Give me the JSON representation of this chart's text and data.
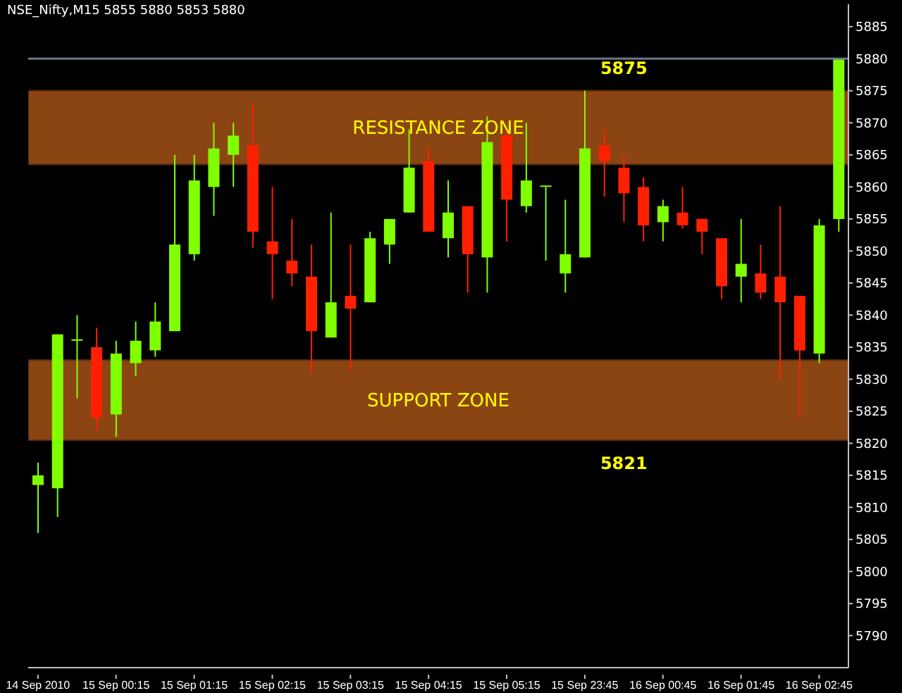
{
  "chart_data": {
    "type": "candlestick",
    "title": "NSE_Nifty,M15  5855 5880 5853 5880",
    "categories": [
      "14 Sep 2010",
      null,
      null,
      null,
      "15 Sep 00:15",
      null,
      null,
      null,
      "15 Sep 01:15",
      null,
      null,
      null,
      "15 Sep 02:15",
      null,
      null,
      null,
      "15 Sep 03:15",
      null,
      null,
      null,
      "15 Sep 04:15",
      null,
      null,
      null,
      "15 Sep 05:15",
      null,
      null,
      null,
      "15 Sep 23:45",
      null,
      null,
      null,
      "16 Sep 00:45",
      null,
      null,
      null,
      "16 Sep 01:45",
      null,
      null,
      null,
      "16 Sep 02:45",
      null
    ],
    "ohlc": [
      [
        5813.5,
        5817,
        5806,
        5815
      ],
      [
        5813,
        5837,
        5808.5,
        5837
      ],
      [
        5836,
        5840,
        5827,
        5836
      ],
      [
        5835,
        5838,
        5822,
        5824
      ],
      [
        5824.5,
        5836,
        5821,
        5834
      ],
      [
        5832.5,
        5839,
        5830.5,
        5836
      ],
      [
        5834.5,
        5842,
        5833.5,
        5839
      ],
      [
        5837.5,
        5865,
        5837.5,
        5851
      ],
      [
        5849.5,
        5865,
        5848.5,
        5861
      ],
      [
        5860,
        5870,
        5855.5,
        5866
      ],
      [
        5865,
        5870,
        5860,
        5868
      ],
      [
        5866.5,
        5873,
        5850.5,
        5853
      ],
      [
        5851.5,
        5860,
        5842.5,
        5849.5
      ],
      [
        5848.5,
        5855,
        5844.5,
        5846.5
      ],
      [
        5846,
        5851,
        5831,
        5837.5
      ],
      [
        5836.5,
        5856,
        5836.5,
        5842
      ],
      [
        5843,
        5851,
        5831.5,
        5841
      ],
      [
        5842,
        5853,
        5842,
        5852
      ],
      [
        5851,
        5855,
        5848,
        5855
      ],
      [
        5856,
        5869,
        5856,
        5863
      ],
      [
        5864,
        5866,
        5853,
        5853
      ],
      [
        5852,
        5861,
        5849,
        5856
      ],
      [
        5857,
        5857,
        5843.5,
        5849.5
      ],
      [
        5849,
        5871,
        5843.5,
        5867
      ],
      [
        5868,
        5869,
        5851.5,
        5858
      ],
      [
        5857,
        5870,
        5856,
        5861
      ],
      [
        5860,
        5860,
        5848.5,
        5860
      ],
      [
        5846.5,
        5858,
        5843.5,
        5849.5
      ],
      [
        5849,
        5875,
        5849,
        5866
      ],
      [
        5866.5,
        5869,
        5858.5,
        5864
      ],
      [
        5863,
        5865,
        5854.5,
        5859
      ],
      [
        5860,
        5861.5,
        5851.5,
        5854
      ],
      [
        5854.5,
        5858,
        5851.5,
        5857
      ],
      [
        5856,
        5860,
        5853.5,
        5854
      ],
      [
        5855,
        5855,
        5849.5,
        5853
      ],
      [
        5852,
        5852,
        5842.5,
        5844.5
      ],
      [
        5846,
        5855,
        5842,
        5848
      ],
      [
        5846.5,
        5851,
        5842.5,
        5843.5
      ],
      [
        5846,
        5857,
        5830,
        5842
      ],
      [
        5843,
        5843,
        5824,
        5834.5
      ],
      [
        5834,
        5855,
        5832.5,
        5854
      ],
      [
        5855,
        5880,
        5853,
        5880
      ]
    ],
    "colors": [
      "#80ff00",
      "#80ff00",
      "#80ff00",
      "#ff2000",
      "#80ff00",
      "#80ff00",
      "#80ff00",
      "#80ff00",
      "#80ff00",
      "#80ff00",
      "#80ff00",
      "#ff2000",
      "#ff2000",
      "#ff2000",
      "#ff2000",
      "#80ff00",
      "#ff2000",
      "#80ff00",
      "#80ff00",
      "#80ff00",
      "#ff2000",
      "#80ff00",
      "#ff2000",
      "#80ff00",
      "#ff2000",
      "#80ff00",
      "#80ff00",
      "#80ff00",
      "#80ff00",
      "#ff2000",
      "#ff2000",
      "#ff2000",
      "#80ff00",
      "#ff2000",
      "#ff2000",
      "#ff2000",
      "#80ff00",
      "#ff2000",
      "#ff2000",
      "#ff2000",
      "#80ff00",
      "#80ff00"
    ],
    "ylim": [
      5785,
      5888.5
    ],
    "yticks": [
      5790,
      5795,
      5800,
      5805,
      5810,
      5815,
      5820,
      5825,
      5830,
      5835,
      5840,
      5845,
      5850,
      5855,
      5860,
      5865,
      5870,
      5875,
      5885
    ],
    "bands": [
      {
        "axis": "y",
        "from": 5863.5,
        "to": 5875,
        "label": "RESISTANCE ZONE",
        "color": "#8b4513"
      },
      {
        "axis": "y",
        "from": 5820.5,
        "to": 5833,
        "label": "SUPPORT ZONE",
        "color": "#8b4513"
      }
    ],
    "ref_lines": [
      {
        "axis": "y",
        "value": 5880,
        "label": "5880",
        "color": "#6b7886"
      }
    ],
    "annotations": [
      {
        "text": "5875",
        "y": 5875
      },
      {
        "text": "5821",
        "y": 5820.5
      }
    ],
    "grid": false,
    "legend": false
  }
}
